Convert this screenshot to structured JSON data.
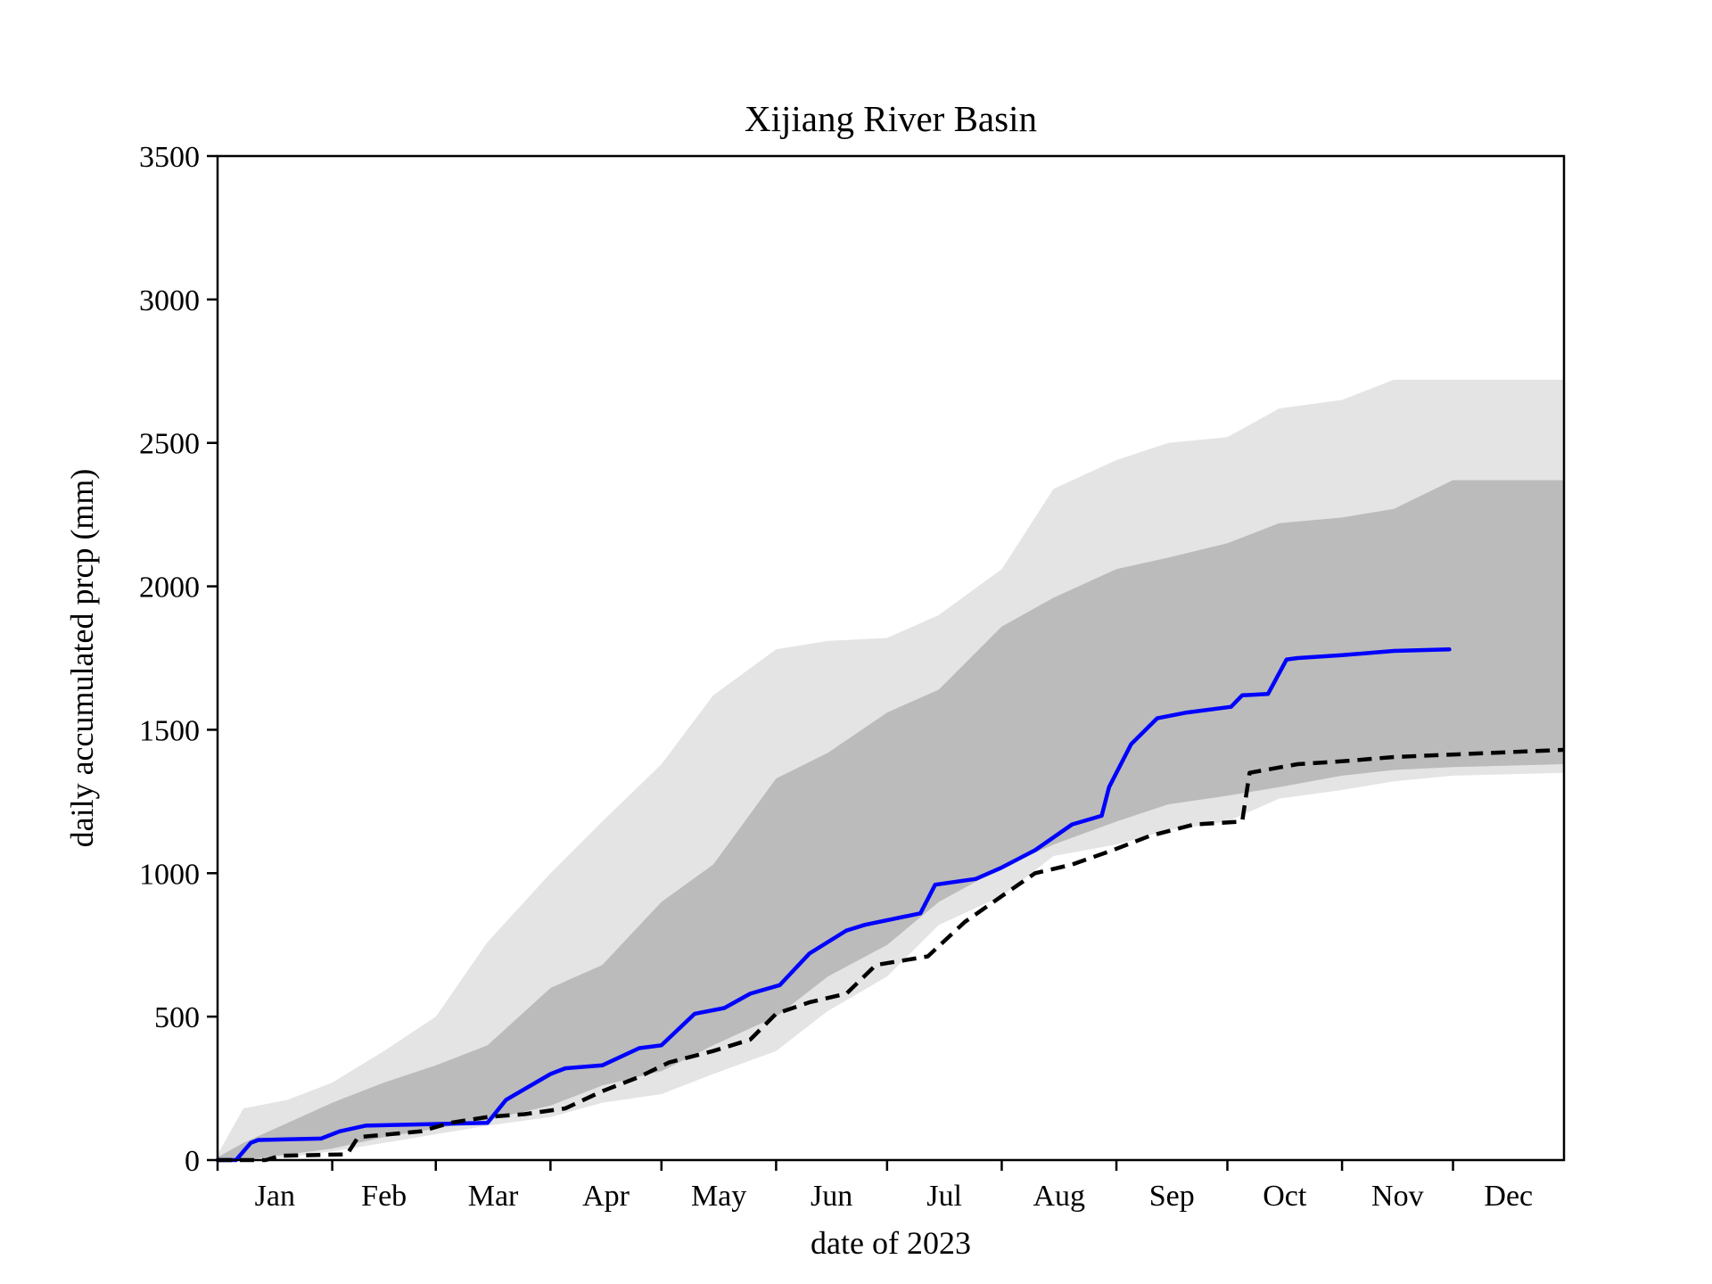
{
  "chart_data": {
    "type": "area",
    "title": "Xijiang River Basin",
    "xlabel": "date of 2023",
    "ylabel": "daily accumulated prcp (mm)",
    "ylim": [
      0,
      3500
    ],
    "xlim": [
      "2023-01-01",
      "2023-12-31"
    ],
    "yticks": [
      0,
      500,
      1000,
      1500,
      2000,
      2500,
      3000,
      3500
    ],
    "month_ticks": [
      "2023-01-01",
      "2023-02-01",
      "2023-03-01",
      "2023-04-01",
      "2023-05-01",
      "2023-06-01",
      "2023-07-01",
      "2023-08-01",
      "2023-09-01",
      "2023-10-01",
      "2023-11-01",
      "2023-12-01"
    ],
    "month_labels": [
      "Jan",
      "Feb",
      "Mar",
      "Apr",
      "May",
      "Jun",
      "Jul",
      "Aug",
      "Sep",
      "Oct",
      "Nov",
      "Dec"
    ],
    "grid": false,
    "colors": {
      "outer_band": "#e4e4e4",
      "inner_band": "#bbbbbb",
      "line_2023": "#0000ff",
      "dashed_line": "#000000"
    },
    "bands": [
      {
        "style": "outer",
        "x": [
          "2023-01-01",
          "2023-01-08",
          "2023-01-20",
          "2023-02-01",
          "2023-02-15",
          "2023-03-01",
          "2023-03-15",
          "2023-04-01",
          "2023-04-15",
          "2023-05-01",
          "2023-05-15",
          "2023-06-01",
          "2023-06-15",
          "2023-07-01",
          "2023-07-15",
          "2023-08-01",
          "2023-08-15",
          "2023-09-01",
          "2023-09-15",
          "2023-10-01",
          "2023-10-15",
          "2023-11-01",
          "2023-11-15",
          "2023-12-01",
          "2023-12-31"
        ],
        "upper": [
          20,
          180,
          210,
          270,
          380,
          500,
          760,
          1000,
          1180,
          1380,
          1620,
          1780,
          1810,
          1820,
          1900,
          2060,
          2340,
          2440,
          2500,
          2520,
          2620,
          2650,
          2720,
          2720,
          2720
        ],
        "lower": [
          0,
          0,
          10,
          30,
          60,
          90,
          120,
          150,
          200,
          230,
          300,
          380,
          520,
          640,
          820,
          920,
          1060,
          1100,
          1150,
          1180,
          1260,
          1290,
          1320,
          1340,
          1350
        ]
      },
      {
        "style": "inner",
        "x": [
          "2023-01-01",
          "2023-01-08",
          "2023-01-20",
          "2023-02-01",
          "2023-02-15",
          "2023-03-01",
          "2023-03-15",
          "2023-04-01",
          "2023-04-15",
          "2023-05-01",
          "2023-05-15",
          "2023-06-01",
          "2023-06-15",
          "2023-07-01",
          "2023-07-15",
          "2023-08-01",
          "2023-08-15",
          "2023-09-01",
          "2023-09-15",
          "2023-10-01",
          "2023-10-15",
          "2023-11-01",
          "2023-11-15",
          "2023-12-01",
          "2023-12-31"
        ],
        "upper": [
          10,
          60,
          130,
          200,
          270,
          330,
          400,
          600,
          680,
          900,
          1030,
          1330,
          1420,
          1560,
          1640,
          1860,
          1960,
          2060,
          2100,
          2150,
          2220,
          2240,
          2270,
          2370,
          2370
        ],
        "lower": [
          0,
          0,
          20,
          40,
          80,
          110,
          140,
          190,
          260,
          310,
          400,
          500,
          640,
          750,
          900,
          1020,
          1100,
          1180,
          1240,
          1270,
          1300,
          1340,
          1360,
          1370,
          1380
        ]
      }
    ],
    "series": [
      {
        "style": "solid",
        "x": [
          "2023-01-01",
          "2023-01-06",
          "2023-01-10",
          "2023-01-12",
          "2023-01-29",
          "2023-02-03",
          "2023-02-10",
          "2023-03-15",
          "2023-03-20",
          "2023-04-01",
          "2023-04-05",
          "2023-04-15",
          "2023-04-25",
          "2023-05-01",
          "2023-05-10",
          "2023-05-18",
          "2023-05-25",
          "2023-06-02",
          "2023-06-10",
          "2023-06-20",
          "2023-06-25",
          "2023-07-10",
          "2023-07-14",
          "2023-07-25",
          "2023-08-01",
          "2023-08-10",
          "2023-08-20",
          "2023-08-28",
          "2023-08-30",
          "2023-09-05",
          "2023-09-12",
          "2023-09-20",
          "2023-10-02",
          "2023-10-05",
          "2023-10-12",
          "2023-10-17",
          "2023-10-20",
          "2023-11-01",
          "2023-11-15",
          "2023-11-30"
        ],
        "y": [
          0,
          0,
          60,
          70,
          75,
          100,
          120,
          130,
          210,
          300,
          320,
          330,
          390,
          400,
          510,
          530,
          580,
          610,
          720,
          800,
          820,
          860,
          960,
          980,
          1020,
          1080,
          1170,
          1200,
          1300,
          1450,
          1540,
          1560,
          1580,
          1620,
          1625,
          1745,
          1750,
          1760,
          1775,
          1780
        ]
      },
      {
        "style": "dashed",
        "x": [
          "2023-01-01",
          "2023-01-14",
          "2023-01-18",
          "2023-02-05",
          "2023-02-08",
          "2023-02-25",
          "2023-03-05",
          "2023-03-15",
          "2023-03-25",
          "2023-04-05",
          "2023-04-15",
          "2023-04-25",
          "2023-05-03",
          "2023-05-15",
          "2023-05-25",
          "2023-06-01",
          "2023-06-10",
          "2023-06-20",
          "2023-06-28",
          "2023-07-12",
          "2023-07-22",
          "2023-08-01",
          "2023-08-10",
          "2023-08-20",
          "2023-08-31",
          "2023-09-10",
          "2023-09-22",
          "2023-10-05",
          "2023-10-07",
          "2023-10-20",
          "2023-11-01",
          "2023-11-15",
          "2023-12-31"
        ],
        "y": [
          0,
          0,
          15,
          20,
          80,
          100,
          130,
          150,
          160,
          180,
          240,
          290,
          340,
          380,
          420,
          510,
          550,
          580,
          680,
          710,
          830,
          920,
          1000,
          1030,
          1080,
          1130,
          1170,
          1180,
          1350,
          1380,
          1390,
          1405,
          1430
        ]
      }
    ]
  }
}
